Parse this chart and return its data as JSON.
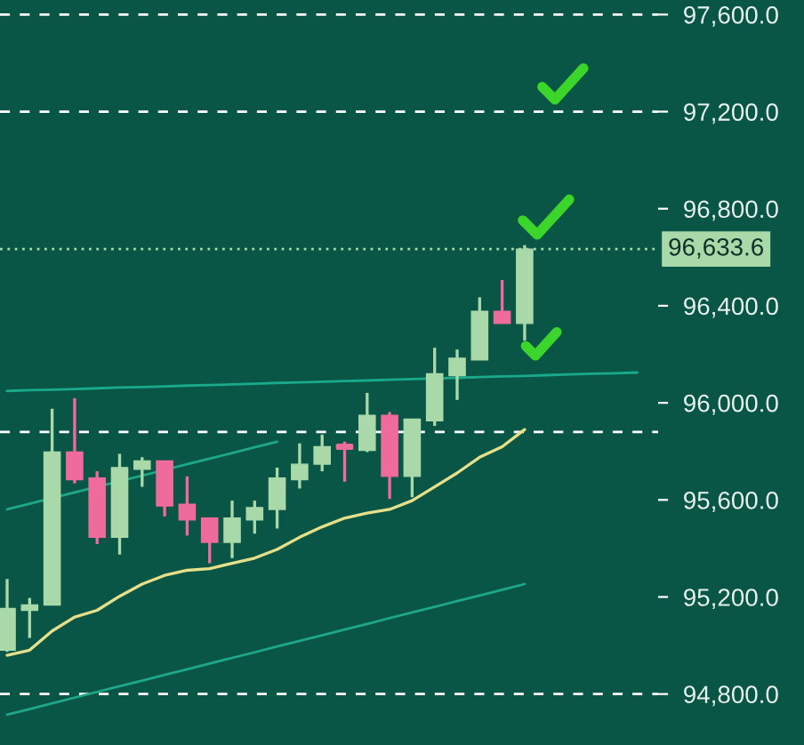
{
  "chart_data": {
    "type": "candlestick",
    "categories": [
      null,
      null,
      null,
      null,
      null,
      null,
      null,
      null,
      null,
      null,
      null,
      null,
      null,
      null,
      null,
      null,
      null,
      null,
      null,
      null,
      null,
      null,
      null,
      null,
      null,
      null,
      null,
      null,
      null
    ],
    "ohlc": [
      [
        94981,
        95274,
        94974,
        95153
      ],
      [
        95145,
        95196,
        95031,
        95167
      ],
      [
        95167,
        95976,
        95167,
        95797
      ],
      [
        95797,
        96019,
        95668,
        95683
      ],
      [
        95690,
        95718,
        95418,
        95446
      ],
      [
        95446,
        95790,
        95375,
        95733
      ],
      [
        95726,
        95776,
        95654,
        95761
      ],
      [
        95761,
        95761,
        95532,
        95575
      ],
      [
        95582,
        95697,
        95453,
        95518
      ],
      [
        95525,
        95525,
        95339,
        95425
      ],
      [
        95425,
        95597,
        95360,
        95525
      ],
      [
        95518,
        95597,
        95461,
        95568
      ],
      [
        95561,
        95733,
        95482,
        95690
      ],
      [
        95683,
        95833,
        95647,
        95747
      ],
      [
        95747,
        95869,
        95718,
        95819
      ],
      [
        95826,
        95840,
        95675,
        95812
      ],
      [
        95804,
        96041,
        95797,
        95948
      ],
      [
        95948,
        95962,
        95604,
        95697
      ],
      [
        95697,
        95933,
        95611,
        95933
      ],
      [
        95926,
        96227,
        95905,
        96120
      ],
      [
        96112,
        96220,
        96012,
        96184
      ],
      [
        96177,
        96435,
        96177,
        96377
      ],
      [
        96377,
        96506,
        96327,
        96327
      ],
      [
        96327,
        96650,
        96256,
        96633.6
      ],
      null,
      null,
      null,
      null,
      null
    ],
    "colors": [
      "#a9d9a9",
      "#a9d9a9",
      "#a9d9a9",
      "#ef6b9b",
      "#ef6b9b",
      "#a9d9a9",
      "#a9d9a9",
      "#ef6b9b",
      "#ef6b9b",
      "#ef6b9b",
      "#a9d9a9",
      "#a9d9a9",
      "#a9d9a9",
      "#a9d9a9",
      "#a9d9a9",
      "#ef6b9b",
      "#a9d9a9",
      "#ef6b9b",
      "#a9d9a9",
      "#a9d9a9",
      "#a9d9a9",
      "#a9d9a9",
      "#ef6b9b",
      "#a9d9a9",
      null,
      null,
      null,
      null,
      null
    ],
    "series": [
      {
        "type": "line",
        "color": "#e6e08a",
        "values": [
          94960,
          94981,
          95060,
          95117,
          95145,
          95203,
          95253,
          95289,
          95310,
          95317,
          95339,
          95360,
          95396,
          95446,
          95489,
          95525,
          95546,
          95561,
          95597,
          95654,
          95711,
          95776,
          95819,
          95890,
          null,
          null,
          null,
          null,
          null
        ]
      },
      {
        "type": "line",
        "color": "#1fa78a",
        "values": [
          95561,
          95584,
          null,
          95631,
          null,
          null,
          95700,
          null,
          95747,
          95770,
          95793,
          95817,
          95840,
          null,
          null,
          null,
          null,
          null,
          null,
          null,
          null,
          null,
          null,
          null,
          null,
          null,
          null,
          null,
          null
        ]
      },
      {
        "type": "line",
        "color": "#1fa78a",
        "values": [
          94715,
          94738,
          94762,
          94785,
          94809,
          94832,
          94855,
          94879,
          94902,
          94926,
          94949,
          94972,
          94996,
          95019,
          95042,
          95066,
          95089,
          95113,
          95136,
          95159,
          95183,
          95206,
          95230,
          95253,
          null,
          null,
          null,
          null,
          null
        ]
      },
      {
        "type": "line",
        "color": "#19a98c",
        "values": [
          96049,
          96052,
          96054,
          96057,
          96060,
          96063,
          96065,
          96068,
          96071,
          96073,
          96076,
          96079,
          96082,
          96084,
          96087,
          96090,
          96092,
          96095,
          96098,
          null,
          96103,
          96106,
          96109,
          96111,
          96114,
          96117,
          96120,
          96122,
          96125
        ]
      }
    ],
    "ylim": [
      94590,
      97660
    ],
    "yticks": [
      {
        "value": 94800,
        "label": "94,800.0"
      },
      {
        "value": 95200,
        "label": "95,200.0"
      },
      {
        "value": 95600,
        "label": "95,600.0"
      },
      {
        "value": 96000,
        "label": "96,000.0"
      },
      {
        "value": 96400,
        "label": "96,400.0"
      },
      {
        "value": 96800,
        "label": "96,800.0"
      },
      {
        "value": 97200,
        "label": "97,200.0"
      },
      {
        "value": 97600,
        "label": "97,600.0"
      }
    ],
    "tick_labels": "y",
    "grid": false,
    "ref_lines": [
      {
        "axis": "y",
        "value": 97600,
        "color": "#ffffff",
        "line_style": "dashed"
      },
      {
        "axis": "y",
        "value": 97200,
        "color": "#ffffff",
        "line_style": "dashed"
      },
      {
        "axis": "y",
        "value": 95880,
        "color": "#ffffff",
        "line_style": "dashed"
      },
      {
        "axis": "y",
        "value": 94800,
        "color": "#ffffff",
        "line_style": "dashed"
      },
      {
        "axis": "y",
        "value": 96633.6,
        "label": "96,633.6",
        "color": "#a9d9a9",
        "line_style": "dotted"
      }
    ]
  }
}
